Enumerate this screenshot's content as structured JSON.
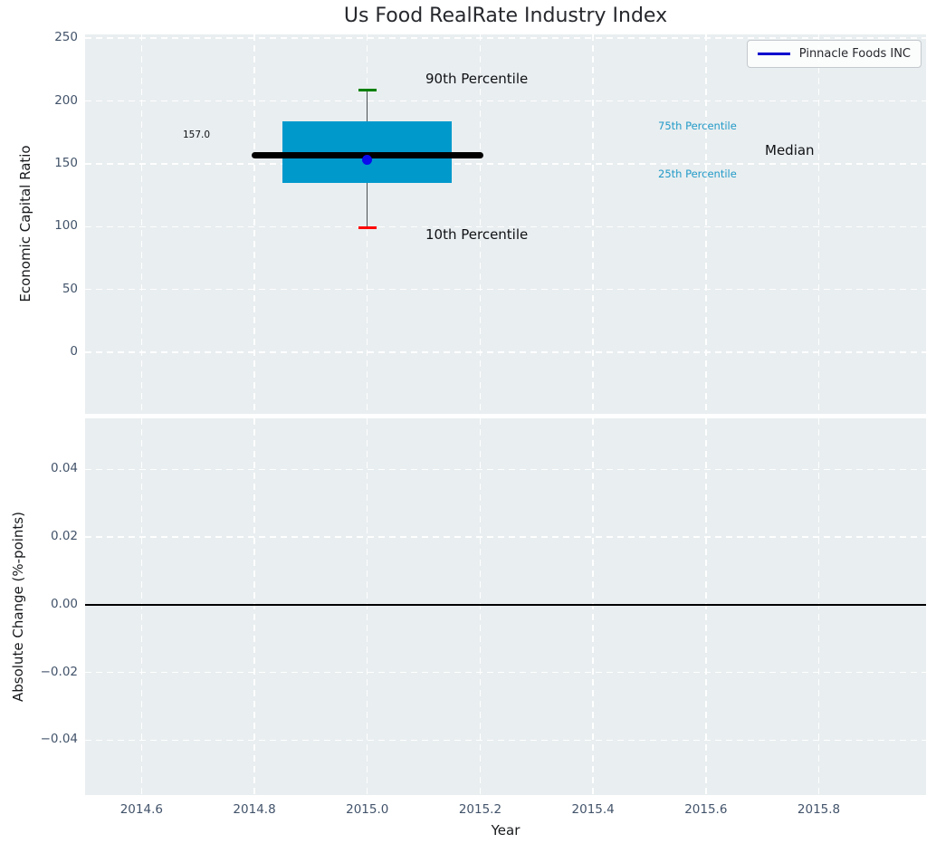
{
  "title": "Us Food RealRate Industry Index",
  "legend": {
    "label": "Pinnacle Foods INC",
    "line_color": "#0000cd",
    "position": "upper right"
  },
  "colors": {
    "plot_background": "#e9eef0",
    "grid": "#ffffff",
    "box_fill": "#0099cc",
    "median_line": "#000000",
    "company_dot": "#0b0bee",
    "cap_90th": "#008000",
    "cap_10th": "#ff0000",
    "tick_label": "#42536a",
    "percentile_label": "#229ac8",
    "zero_line": "#000000"
  },
  "chart_data": [
    {
      "type": "boxplot",
      "title": "Us Food RealRate Industry Index",
      "xlabel": "Year",
      "ylabel": "Economic Capital Ratio",
      "xlim": [
        2014.5,
        2015.99
      ],
      "ylim": [
        -49,
        253
      ],
      "grid": true,
      "xticks": [
        {
          "v": 2014.6,
          "label": "2014.6"
        },
        {
          "v": 2014.8,
          "label": "2014.8"
        },
        {
          "v": 2015.0,
          "label": "2015.0"
        },
        {
          "v": 2015.2,
          "label": "2015.2"
        },
        {
          "v": 2015.4,
          "label": "2015.4"
        },
        {
          "v": 2015.6,
          "label": "2015.6"
        },
        {
          "v": 2015.8,
          "label": "2015.8"
        }
      ],
      "yticks": [
        {
          "v": 0,
          "label": "0"
        },
        {
          "v": 50,
          "label": "50"
        },
        {
          "v": 100,
          "label": "100"
        },
        {
          "v": 150,
          "label": "150"
        },
        {
          "v": 200,
          "label": "200"
        },
        {
          "v": 250,
          "label": "250"
        }
      ],
      "box": {
        "x": 2015.0,
        "p90": 209,
        "p75": 184,
        "median": 157,
        "p25": 135,
        "p10": 99,
        "box_half_width": 0.15,
        "median_half_width": 0.205,
        "cap_half_width": 0.016
      },
      "series": [
        {
          "name": "Pinnacle Foods INC",
          "x": 2015.0,
          "y": 153,
          "marker": "circle",
          "color": "#0b0bee"
        }
      ],
      "annotations": [
        {
          "text": "90th Percentile"
        },
        {
          "text": "10th Percentile"
        },
        {
          "text": "75th Percentile"
        },
        {
          "text": "25th Percentile"
        },
        {
          "text": "Median"
        },
        {
          "text": "157.0"
        }
      ]
    },
    {
      "type": "line",
      "xlabel": "Year",
      "ylabel": "Absolute Change (%-points)",
      "xlim": [
        2014.5,
        2015.99
      ],
      "ylim": [
        -0.0562,
        0.0551
      ],
      "grid": true,
      "xticks": [
        {
          "v": 2014.6,
          "label": "2014.6"
        },
        {
          "v": 2014.8,
          "label": "2014.8"
        },
        {
          "v": 2015.0,
          "label": "2015.0"
        },
        {
          "v": 2015.2,
          "label": "2015.2"
        },
        {
          "v": 2015.4,
          "label": "2015.4"
        },
        {
          "v": 2015.6,
          "label": "2015.6"
        },
        {
          "v": 2015.8,
          "label": "2015.8"
        }
      ],
      "yticks": [
        {
          "v": 0.04,
          "label": "0.04"
        },
        {
          "v": 0.02,
          "label": "0.02"
        },
        {
          "v": 0.0,
          "label": "0.00"
        },
        {
          "v": -0.02,
          "label": "−0.02"
        },
        {
          "v": -0.04,
          "label": "−0.04"
        }
      ],
      "hline": 0.0,
      "series": []
    }
  ]
}
